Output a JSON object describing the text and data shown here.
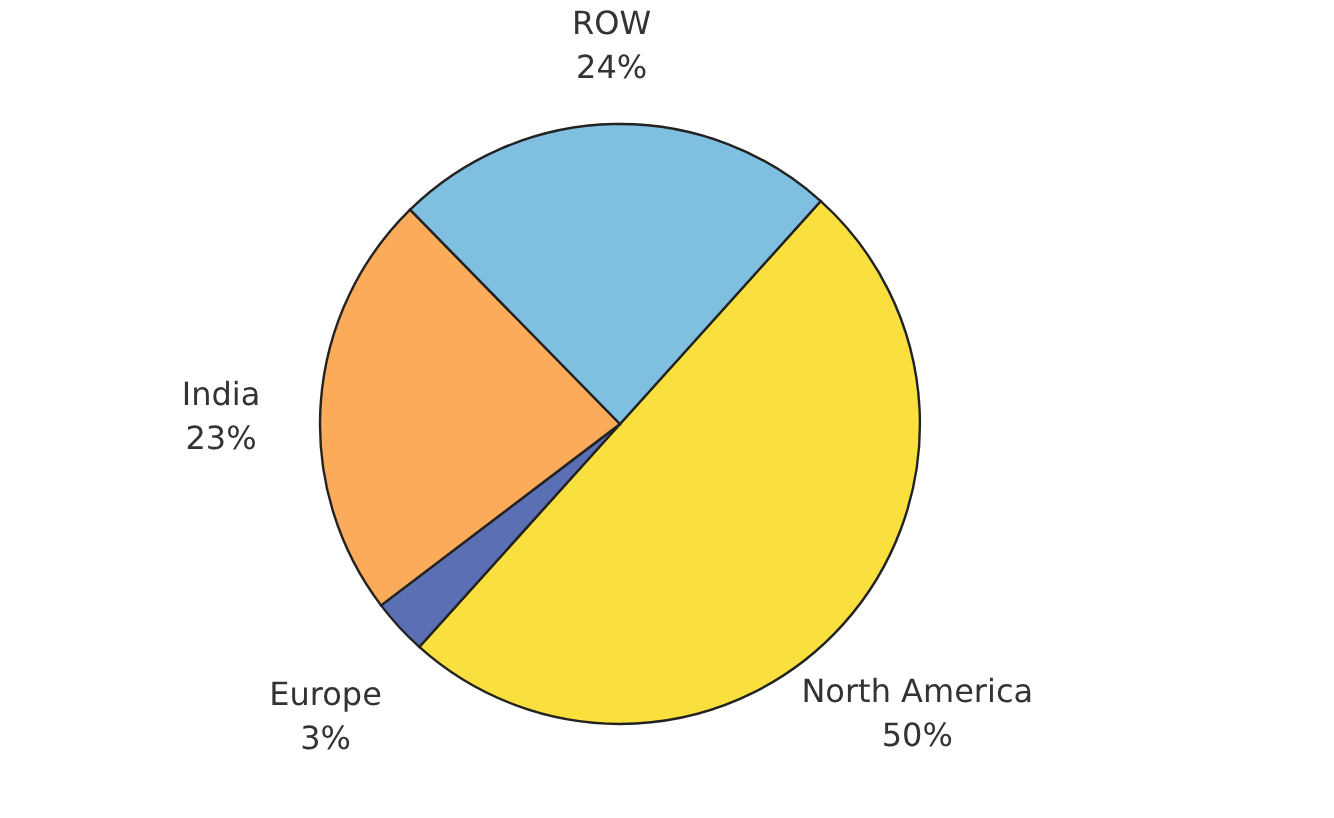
{
  "chart_data": {
    "type": "pie",
    "categories": [
      "North America",
      "Europe",
      "India",
      "ROW"
    ],
    "values": [
      50,
      3,
      23,
      24
    ],
    "colors": [
      "#f9e03f",
      "#5b6fb5",
      "#fbab5a",
      "#7fbfe0"
    ],
    "value_labels": [
      "50%",
      "3%",
      "23%",
      "24%"
    ]
  }
}
